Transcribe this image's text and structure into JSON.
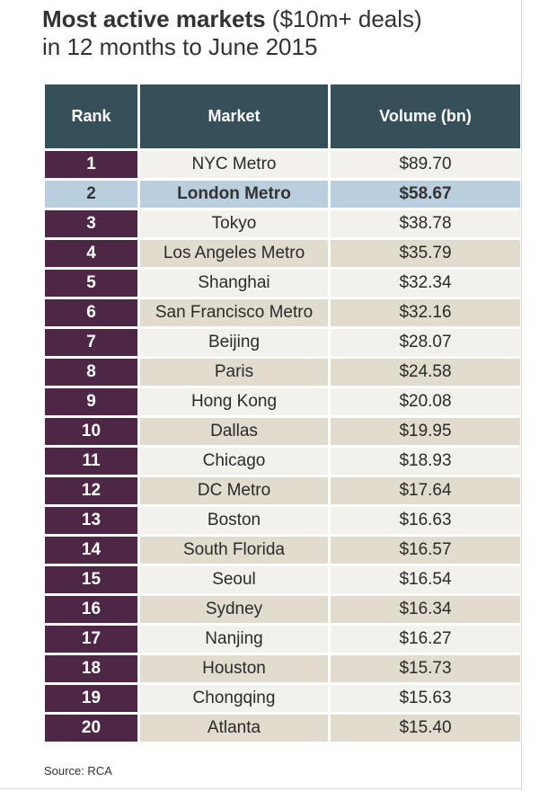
{
  "title": {
    "bold": "Most active markets",
    "rest": " ($10m+ deals)",
    "line2": "in 12 months to June 2015"
  },
  "source": "Source: RCA",
  "chart_data": {
    "type": "table",
    "title": "Most active markets ($10m+ deals) in 12 months to June 2015",
    "columns": [
      "Rank",
      "Market",
      "Volume (bn)"
    ],
    "highlight_rank": 2,
    "rows": [
      {
        "rank": "1",
        "market": "NYC Metro",
        "volume": "$89.70"
      },
      {
        "rank": "2",
        "market": "London Metro",
        "volume": "$58.67"
      },
      {
        "rank": "3",
        "market": "Tokyo",
        "volume": "$38.78"
      },
      {
        "rank": "4",
        "market": "Los Angeles Metro",
        "volume": "$35.79"
      },
      {
        "rank": "5",
        "market": "Shanghai",
        "volume": "$32.34"
      },
      {
        "rank": "6",
        "market": "San Francisco Metro",
        "volume": "$32.16"
      },
      {
        "rank": "7",
        "market": "Beijing",
        "volume": "$28.07"
      },
      {
        "rank": "8",
        "market": "Paris",
        "volume": "$24.58"
      },
      {
        "rank": "9",
        "market": "Hong Kong",
        "volume": "$20.08"
      },
      {
        "rank": "10",
        "market": "Dallas",
        "volume": "$19.95"
      },
      {
        "rank": "11",
        "market": "Chicago",
        "volume": "$18.93"
      },
      {
        "rank": "12",
        "market": "DC Metro",
        "volume": "$17.64"
      },
      {
        "rank": "13",
        "market": "Boston",
        "volume": "$16.63"
      },
      {
        "rank": "14",
        "market": "South Florida",
        "volume": "$16.57"
      },
      {
        "rank": "15",
        "market": "Seoul",
        "volume": "$16.54"
      },
      {
        "rank": "16",
        "market": "Sydney",
        "volume": "$16.34"
      },
      {
        "rank": "17",
        "market": "Nanjing",
        "volume": "$16.27"
      },
      {
        "rank": "18",
        "market": "Houston",
        "volume": "$15.73"
      },
      {
        "rank": "19",
        "market": "Chongqing",
        "volume": "$15.63"
      },
      {
        "rank": "20",
        "market": "Atlanta",
        "volume": "$15.40"
      }
    ],
    "colors": {
      "header_bg": "#36505a",
      "rank_bg": "#4d2745",
      "row_light": "#f3f1ec",
      "row_dark": "#e2dcce",
      "highlight": "#b9cfdd"
    }
  }
}
